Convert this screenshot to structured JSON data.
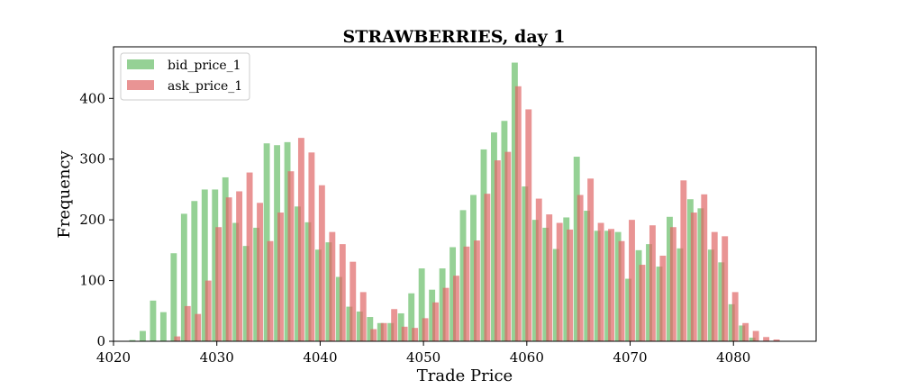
{
  "chart_data": {
    "type": "bar",
    "title": "STRAWBERRIES, day 1",
    "xlabel": "Trade Price",
    "ylabel": "Frequency",
    "xlim": [
      4020,
      4088
    ],
    "ylim": [
      0,
      485
    ],
    "xticks": [
      4020,
      4030,
      4040,
      4050,
      4060,
      4070,
      4080
    ],
    "yticks": [
      0,
      100,
      200,
      300,
      400
    ],
    "legend_position": "top-left",
    "bar_width": 0.6,
    "series": [
      {
        "name": "bid_price_1",
        "color": "#5cb85c",
        "opacity": 0.65,
        "offset": -0.17,
        "x": [
          4022,
          4023,
          4024,
          4025,
          4026,
          4027,
          4028,
          4029,
          4030,
          4031,
          4032,
          4033,
          4034,
          4035,
          4036,
          4037,
          4038,
          4039,
          4040,
          4041,
          4042,
          4043,
          4044,
          4045,
          4046,
          4047,
          4048,
          4049,
          4050,
          4051,
          4052,
          4053,
          4054,
          4055,
          4056,
          4057,
          4058,
          4059,
          4060,
          4061,
          4062,
          4063,
          4064,
          4065,
          4066,
          4067,
          4068,
          4069,
          4070,
          4071,
          4072,
          4073,
          4074,
          4075,
          4076,
          4077,
          4078,
          4079,
          4080,
          4081,
          4082
        ],
        "values": [
          2,
          17,
          67,
          48,
          145,
          210,
          231,
          250,
          250,
          270,
          195,
          157,
          187,
          326,
          323,
          328,
          222,
          196,
          151,
          163,
          106,
          57,
          49,
          40,
          30,
          30,
          46,
          79,
          120,
          85,
          120,
          155,
          216,
          241,
          316,
          344,
          363,
          459,
          255,
          200,
          187,
          152,
          204,
          304,
          215,
          182,
          182,
          180,
          103,
          150,
          160,
          123,
          205,
          153,
          234,
          219,
          151,
          130,
          61,
          26,
          6
        ]
      },
      {
        "name": "ask_price_1",
        "color": "#e06666",
        "opacity": 0.7,
        "offset": 0.17,
        "x": [
          4026,
          4027,
          4028,
          4029,
          4030,
          4031,
          4032,
          4033,
          4034,
          4035,
          4036,
          4037,
          4038,
          4039,
          4040,
          4041,
          4042,
          4043,
          4044,
          4045,
          4046,
          4047,
          4048,
          4049,
          4050,
          4051,
          4052,
          4053,
          4054,
          4055,
          4056,
          4057,
          4058,
          4059,
          4060,
          4061,
          4062,
          4063,
          4064,
          4065,
          4066,
          4067,
          4068,
          4069,
          4070,
          4071,
          4072,
          4073,
          4074,
          4075,
          4076,
          4077,
          4078,
          4079,
          4080,
          4081,
          4082,
          4083,
          4084,
          4085
        ],
        "values": [
          8,
          58,
          45,
          100,
          188,
          237,
          247,
          278,
          228,
          165,
          212,
          280,
          335,
          311,
          257,
          180,
          160,
          131,
          81,
          20,
          30,
          53,
          24,
          22,
          38,
          64,
          88,
          108,
          156,
          166,
          243,
          298,
          312,
          420,
          382,
          235,
          209,
          195,
          184,
          241,
          268,
          195,
          185,
          165,
          200,
          126,
          191,
          141,
          188,
          265,
          212,
          242,
          180,
          173,
          81,
          30,
          17,
          7,
          3,
          0
        ]
      }
    ]
  }
}
